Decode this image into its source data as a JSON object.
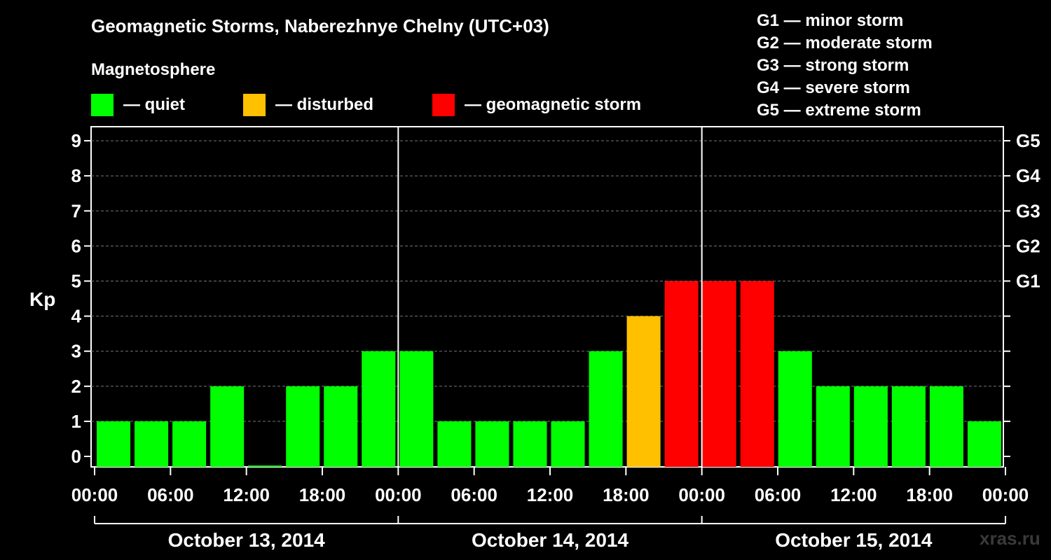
{
  "header": {
    "title": "Geomagnetic Storms, Naberezhnye Chelny (UTC+03)",
    "subtitle": "Magnetosphere"
  },
  "legend": [
    {
      "label": "— quiet",
      "color": "#00ff00"
    },
    {
      "label": "— disturbed",
      "color": "#ffc000"
    },
    {
      "label": "— geomagnetic storm",
      "color": "#ff0000"
    }
  ],
  "storm_scale": [
    "G1 — minor storm",
    "G2 — moderate storm",
    "G3 — strong storm",
    "G4 — severe storm",
    "G5 — extreme storm"
  ],
  "watermark": "xras.ru",
  "chart_data": {
    "type": "bar",
    "ylabel": "Kp",
    "ylim": [
      0,
      9
    ],
    "yticks": [
      "0",
      "1",
      "2",
      "3",
      "4",
      "5",
      "6",
      "7",
      "8",
      "9"
    ],
    "right_axis_labels": [
      {
        "kp": 5,
        "label": "G1"
      },
      {
        "kp": 6,
        "label": "G2"
      },
      {
        "kp": 7,
        "label": "G3"
      },
      {
        "kp": 8,
        "label": "G4"
      },
      {
        "kp": 9,
        "label": "G5"
      }
    ],
    "interval_hours": 3,
    "xticks": [
      "00:00",
      "06:00",
      "12:00",
      "18:00",
      "00:00",
      "06:00",
      "12:00",
      "18:00",
      "00:00",
      "06:00",
      "12:00",
      "18:00",
      "00:00"
    ],
    "days": [
      "October 13, 2014",
      "October 14, 2014",
      "October 15, 2014"
    ],
    "values": [
      1,
      1,
      1,
      2,
      0,
      2,
      2,
      3,
      3,
      1,
      1,
      1,
      1,
      3,
      4,
      5,
      5,
      5,
      3,
      2,
      2,
      2,
      2,
      1
    ],
    "colors": {
      "quiet": "#00ff00",
      "disturbed": "#ffc000",
      "storm": "#ff0000"
    },
    "thresholds": {
      "disturbed": 4,
      "storm": 5
    }
  }
}
